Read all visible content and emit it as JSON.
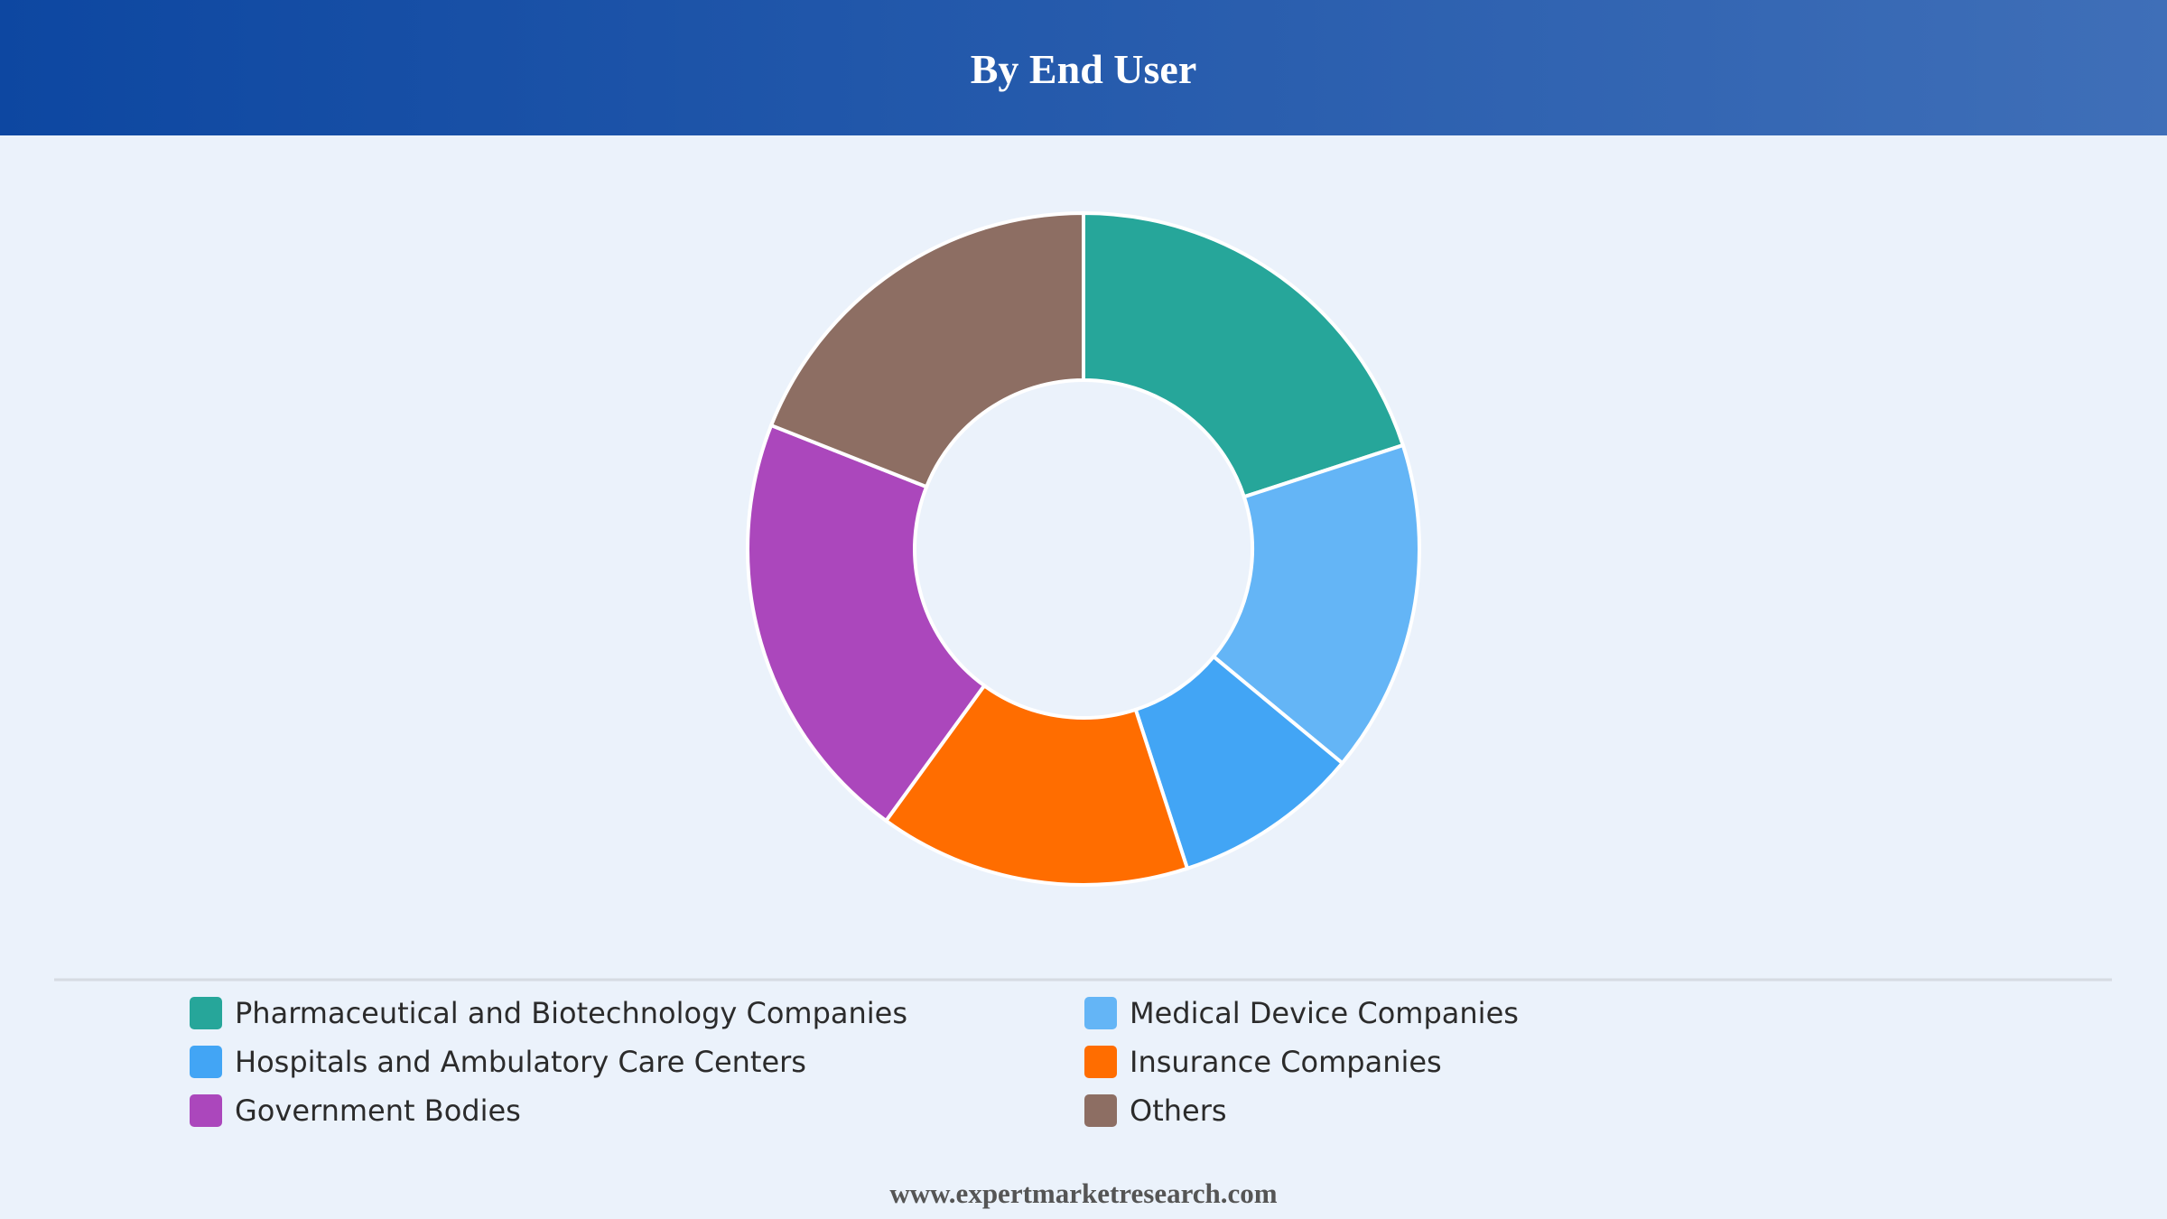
{
  "chart_data": {
    "type": "donut",
    "title": "By End User",
    "categories": [
      "Pharmaceutical and Biotechnology Companies",
      "Medical Device Companies",
      "Hospitals and Ambulatory Care Centers",
      "Insurance Companies",
      "Government Bodies",
      "Others"
    ],
    "values": [
      20,
      16,
      9,
      15,
      21,
      19
    ],
    "colors": [
      "#26a69a",
      "#64b5f6",
      "#42a5f5",
      "#ff6d00",
      "#ab47bc",
      "#8d6e63"
    ]
  },
  "footer": {
    "source": "www.expertmarketresearch.com"
  }
}
